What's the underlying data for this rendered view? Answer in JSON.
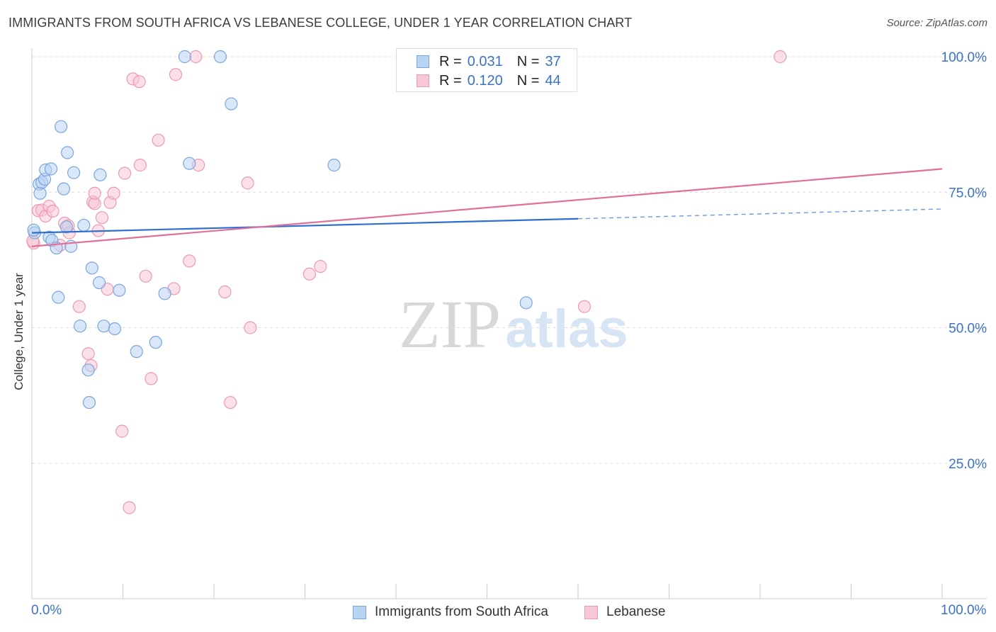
{
  "header": {
    "title": "IMMIGRANTS FROM SOUTH AFRICA VS LEBANESE COLLEGE, UNDER 1 YEAR CORRELATION CHART",
    "source": "Source: ZipAtlas.com"
  },
  "watermark": {
    "zip": "ZIP",
    "atlas": "atlas"
  },
  "legend": {
    "rows": [
      {
        "r_label": "R =",
        "r_value": "0.031",
        "n_label": "N =",
        "n_value": "37"
      },
      {
        "r_label": "R =",
        "r_value": "0.120",
        "n_label": "N =",
        "n_value": "44"
      }
    ]
  },
  "bottom_legend": {
    "series1": "Immigrants from South Africa",
    "series2": "Lebanese"
  },
  "colors": {
    "blue_fill": "#b9d3f3",
    "blue_stroke": "#7aa6dc",
    "blue_line": "#2f6fcf",
    "pink_fill": "#f7c7d6",
    "pink_stroke": "#ea9ab4",
    "pink_line": "#e0709a",
    "tick_text": "#3a72c8",
    "grid": "#dddddd"
  },
  "chart_data": {
    "type": "scatter",
    "title": "IMMIGRANTS FROM SOUTH AFRICA VS LEBANESE COLLEGE, UNDER 1 YEAR CORRELATION CHART",
    "xlabel": "",
    "ylabel": "College, Under 1 year",
    "xlim": [
      0,
      100
    ],
    "ylim": [
      0,
      102
    ],
    "x_tick_labels": [
      "0.0%",
      "100.0%"
    ],
    "y_tick_labels": [
      {
        "value": 100,
        "label": "100.0%"
      },
      {
        "value": 75,
        "label": "75.0%"
      },
      {
        "value": 50,
        "label": "50.0%"
      },
      {
        "value": 25,
        "label": "25.0%"
      }
    ],
    "series": [
      {
        "name": "Immigrants from South Africa",
        "R": 0.031,
        "N": 37,
        "trend": {
          "x0": 0,
          "y0": 67.5,
          "x1": 60,
          "y1": 70.1,
          "dash_to_x": 100,
          "dash_to_y": 71.9
        },
        "points": [
          [
            0.3,
            67.5
          ],
          [
            0.8,
            76.5
          ],
          [
            0.9,
            74.8
          ],
          [
            1.1,
            76.8
          ],
          [
            1.4,
            77.4
          ],
          [
            1.5,
            79.1
          ],
          [
            1.9,
            66.7
          ],
          [
            2.1,
            79.3
          ],
          [
            2.2,
            66.1
          ],
          [
            2.7,
            64.7
          ],
          [
            2.9,
            55.6
          ],
          [
            3.2,
            87.1
          ],
          [
            3.5,
            75.6
          ],
          [
            3.8,
            68.6
          ],
          [
            3.9,
            82.3
          ],
          [
            4.3,
            65.0
          ],
          [
            4.6,
            78.6
          ],
          [
            5.3,
            50.3
          ],
          [
            5.7,
            68.9
          ],
          [
            6.2,
            42.2
          ],
          [
            6.3,
            36.2
          ],
          [
            6.6,
            61.0
          ],
          [
            7.4,
            58.3
          ],
          [
            7.5,
            78.2
          ],
          [
            7.9,
            50.3
          ],
          [
            9.1,
            49.8
          ],
          [
            9.6,
            56.9
          ],
          [
            11.5,
            45.6
          ],
          [
            13.6,
            47.3
          ],
          [
            14.6,
            56.3
          ],
          [
            16.8,
            100.0
          ],
          [
            17.3,
            80.3
          ],
          [
            20.7,
            100.0
          ],
          [
            21.9,
            91.3
          ],
          [
            33.2,
            80.0
          ],
          [
            54.3,
            54.6
          ],
          [
            0.2,
            68.0
          ]
        ]
      },
      {
        "name": "Lebanese",
        "R": 0.12,
        "N": 44,
        "trend": {
          "x0": 0,
          "y0": 65.0,
          "x1": 100,
          "y1": 79.3
        },
        "points": [
          [
            0.2,
            65.6
          ],
          [
            0.7,
            71.6
          ],
          [
            1.1,
            71.7
          ],
          [
            1.5,
            70.6
          ],
          [
            1.9,
            72.4
          ],
          [
            2.3,
            71.5
          ],
          [
            3.1,
            65.2
          ],
          [
            3.6,
            69.3
          ],
          [
            4.1,
            67.5
          ],
          [
            5.2,
            53.9
          ],
          [
            6.2,
            45.2
          ],
          [
            6.5,
            43.0
          ],
          [
            6.7,
            73.2
          ],
          [
            6.9,
            72.9
          ],
          [
            6.9,
            74.8
          ],
          [
            7.3,
            67.9
          ],
          [
            7.7,
            70.3
          ],
          [
            8.3,
            57.1
          ],
          [
            8.6,
            73.1
          ],
          [
            9.0,
            74.8
          ],
          [
            9.9,
            30.9
          ],
          [
            10.2,
            78.5
          ],
          [
            10.7,
            16.8
          ],
          [
            11.1,
            95.9
          ],
          [
            11.8,
            95.4
          ],
          [
            11.9,
            80.0
          ],
          [
            12.5,
            59.5
          ],
          [
            13.1,
            40.6
          ],
          [
            13.9,
            84.6
          ],
          [
            15.6,
            57.2
          ],
          [
            15.8,
            96.7
          ],
          [
            17.3,
            62.3
          ],
          [
            18.0,
            100.0
          ],
          [
            18.3,
            80.0
          ],
          [
            21.2,
            56.6
          ],
          [
            21.8,
            36.2
          ],
          [
            23.7,
            76.7
          ],
          [
            24.0,
            50.0
          ],
          [
            30.5,
            59.9
          ],
          [
            31.7,
            61.3
          ],
          [
            60.7,
            53.9
          ],
          [
            82.2,
            100.0
          ],
          [
            0.1,
            66.0
          ],
          [
            4.0,
            68.8
          ]
        ]
      }
    ]
  }
}
